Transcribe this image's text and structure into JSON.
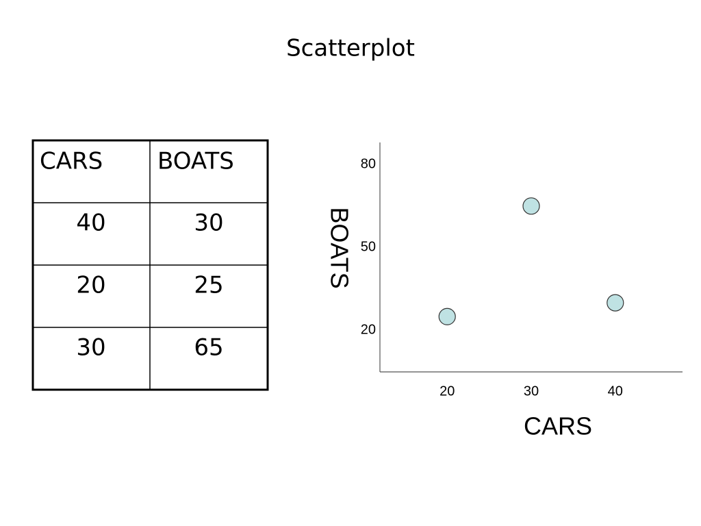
{
  "title": "Scatterplot",
  "table": {
    "header": [
      "CARS",
      "BOATS"
    ],
    "rows": [
      [
        40,
        30
      ],
      [
        20,
        25
      ],
      [
        30,
        65
      ]
    ]
  },
  "chart_data": {
    "type": "scatter",
    "x_label": "CARS",
    "y_label": "BOATS",
    "x": [
      20,
      30,
      40
    ],
    "values": [
      25,
      65,
      30
    ],
    "color": "#bfe2e3",
    "xlim": [
      12,
      48
    ],
    "ylim": [
      5,
      88
    ],
    "xticks": [
      20,
      30,
      40
    ],
    "yticks": [
      20,
      50,
      80
    ]
  }
}
